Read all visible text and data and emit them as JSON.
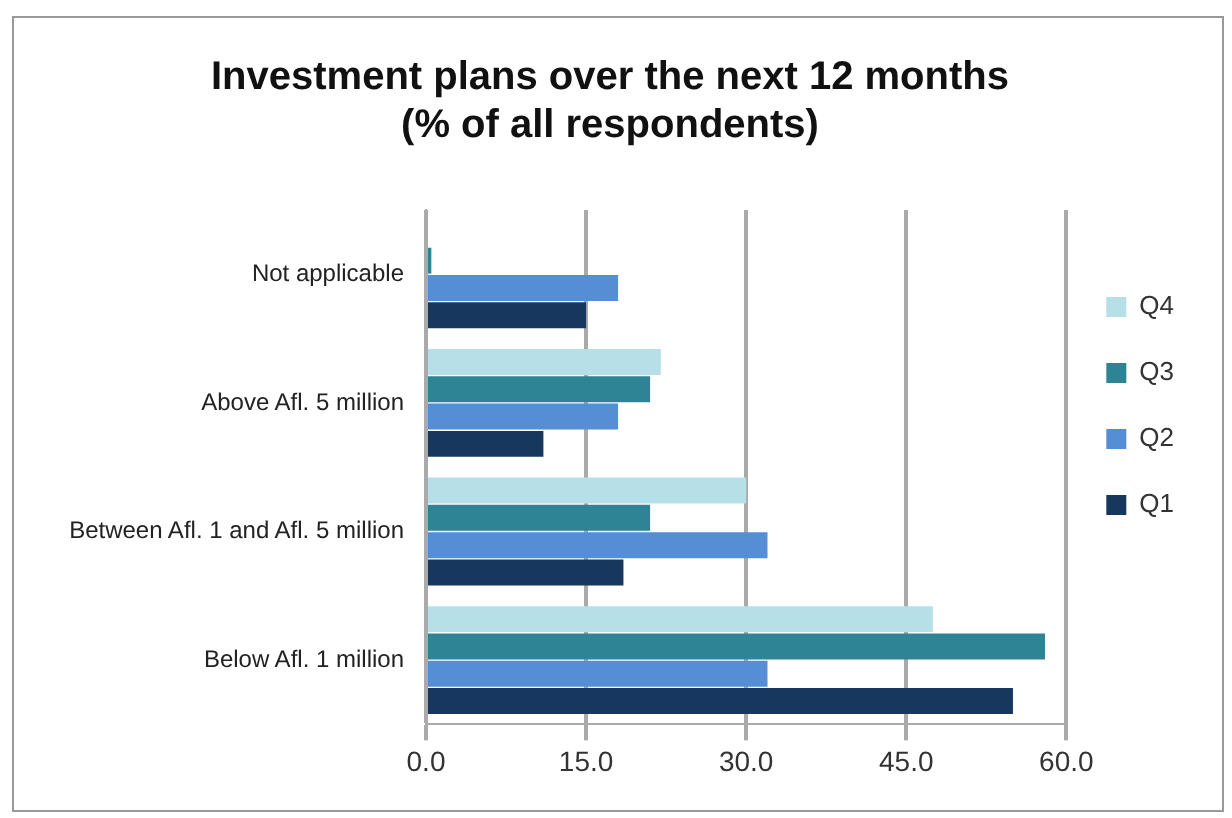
{
  "chart_data": {
    "type": "bar",
    "orientation": "horizontal",
    "title": [
      "Investment plans over the next 12 months",
      "(% of all respondents)"
    ],
    "categories": [
      "Not applicable",
      "Above Afl. 5 million",
      "Between Afl. 1 and Afl. 5 million",
      "Below Afl. 1 million"
    ],
    "series": [
      {
        "name": "Q4",
        "color": "#b7dfe8",
        "values": [
          0,
          22,
          30,
          47.5
        ]
      },
      {
        "name": "Q3",
        "color": "#2e8494",
        "values": [
          0.5,
          21,
          21,
          58
        ]
      },
      {
        "name": "Q2",
        "color": "#558ed5",
        "values": [
          18,
          18,
          32,
          32
        ]
      },
      {
        "name": "Q1",
        "color": "#17375e",
        "values": [
          15,
          11,
          18.5,
          55
        ]
      }
    ],
    "xlim": [
      0,
      60
    ],
    "xticks": [
      {
        "value": 0,
        "label": "0.0"
      },
      {
        "value": 15,
        "label": "15.0"
      },
      {
        "value": 30,
        "label": "30.0"
      },
      {
        "value": 45,
        "label": "45.0"
      },
      {
        "value": 60,
        "label": "60.0"
      }
    ],
    "grid": "x",
    "legend": "right"
  }
}
